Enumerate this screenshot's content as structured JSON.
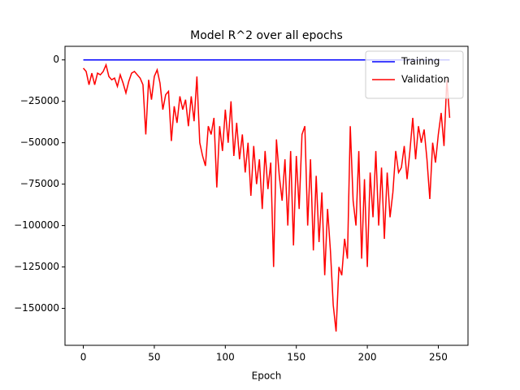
{
  "chart_data": {
    "type": "line",
    "title": "Model R^2 over all epochs",
    "x_label": "Epoch",
    "x": [
      0,
      2,
      4,
      6,
      8,
      10,
      12,
      14,
      16,
      18,
      20,
      22,
      24,
      26,
      28,
      30,
      32,
      34,
      36,
      38,
      40,
      42,
      44,
      46,
      48,
      50,
      52,
      54,
      56,
      58,
      60,
      62,
      64,
      66,
      68,
      70,
      72,
      74,
      76,
      78,
      80,
      82,
      84,
      86,
      88,
      90,
      92,
      94,
      96,
      98,
      100,
      102,
      104,
      106,
      108,
      110,
      112,
      114,
      116,
      118,
      120,
      122,
      124,
      126,
      128,
      130,
      132,
      134,
      136,
      138,
      140,
      142,
      144,
      146,
      148,
      150,
      152,
      154,
      156,
      158,
      160,
      162,
      164,
      166,
      168,
      170,
      172,
      174,
      176,
      178,
      180,
      182,
      184,
      186,
      188,
      190,
      192,
      194,
      196,
      198,
      200,
      202,
      204,
      206,
      208,
      210,
      212,
      214,
      216,
      218,
      220,
      222,
      224,
      226,
      228,
      230,
      232,
      234,
      236,
      238,
      240,
      242,
      244,
      246,
      248,
      250,
      252,
      254,
      256,
      258
    ],
    "series": [
      {
        "name": "Training",
        "color": "#0000ff",
        "values": [
          0,
          0,
          0,
          0,
          0,
          0,
          0,
          0,
          0,
          0,
          0,
          0,
          0,
          0,
          0,
          0,
          0,
          0,
          0,
          0,
          0,
          0,
          0,
          0,
          0,
          0,
          0,
          0,
          0,
          0,
          0,
          0,
          0,
          0,
          0,
          0,
          0,
          0,
          0,
          0,
          0,
          0,
          0,
          0,
          0,
          0,
          0,
          0,
          0,
          0,
          0,
          0,
          0,
          0,
          0,
          0,
          0,
          0,
          0,
          0,
          0,
          0,
          0,
          0,
          0,
          0,
          0,
          0,
          0,
          0,
          0,
          0,
          0,
          0,
          0,
          0,
          0,
          0,
          0,
          0,
          0,
          0,
          0,
          0,
          0,
          0,
          0,
          0,
          0,
          0,
          0,
          0,
          0,
          0,
          0,
          0,
          0,
          0,
          0,
          0,
          0,
          0,
          0,
          0,
          0,
          0,
          0,
          0,
          0,
          0,
          0,
          0,
          0,
          0,
          0,
          0,
          0,
          0,
          0,
          0,
          0,
          0,
          0,
          0,
          0,
          0,
          0,
          0,
          0,
          0
        ]
      },
      {
        "name": "Validation",
        "color": "#ff0000",
        "values": [
          -5000,
          -7000,
          -15000,
          -8000,
          -15000,
          -8000,
          -9000,
          -7000,
          -3000,
          -10000,
          -12000,
          -11000,
          -16000,
          -9000,
          -14000,
          -20000,
          -13000,
          -8000,
          -7000,
          -9000,
          -11000,
          -15000,
          -45000,
          -12000,
          -24000,
          -10000,
          -6000,
          -14000,
          -30000,
          -21000,
          -19000,
          -49000,
          -28000,
          -38000,
          -22000,
          -30000,
          -24000,
          -40000,
          -22000,
          -37000,
          -10000,
          -50000,
          -58000,
          -64000,
          -40000,
          -45000,
          -35000,
          -77000,
          -40000,
          -55000,
          -30000,
          -50000,
          -25000,
          -58000,
          -38000,
          -60000,
          -45000,
          -68000,
          -50000,
          -82000,
          -52000,
          -75000,
          -60000,
          -90000,
          -55000,
          -78000,
          -62000,
          -125000,
          -48000,
          -70000,
          -85000,
          -60000,
          -100000,
          -55000,
          -112000,
          -58000,
          -90000,
          -45000,
          -40000,
          -100000,
          -60000,
          -115000,
          -70000,
          -110000,
          -80000,
          -130000,
          -90000,
          -115000,
          -148000,
          -164000,
          -125000,
          -130000,
          -108000,
          -120000,
          -40000,
          -85000,
          -100000,
          -55000,
          -120000,
          -72000,
          -125000,
          -68000,
          -95000,
          -55000,
          -100000,
          -65000,
          -108000,
          -68000,
          -95000,
          -80000,
          -55000,
          -68000,
          -65000,
          -52000,
          -72000,
          -55000,
          -35000,
          -60000,
          -40000,
          -50000,
          -42000,
          -60000,
          -84000,
          -50000,
          -62000,
          -45000,
          -32000,
          -52000,
          -12000,
          -35000
        ]
      }
    ],
    "xlim": [
      -12.9,
      270.9
    ],
    "xticks": [
      0,
      50,
      100,
      150,
      200,
      250
    ],
    "ylim": [
      -172300,
      8200
    ],
    "yticks": [
      0,
      {
        "value": -25000,
        "label": "−25000"
      },
      {
        "value": -50000,
        "label": "−50000"
      },
      {
        "value": -75000,
        "label": "−75000"
      },
      {
        "value": -100000,
        "label": "−100000"
      },
      {
        "value": -125000,
        "label": "−125000"
      },
      {
        "value": -150000,
        "label": "−150000"
      }
    ],
    "legend": "upper right"
  }
}
